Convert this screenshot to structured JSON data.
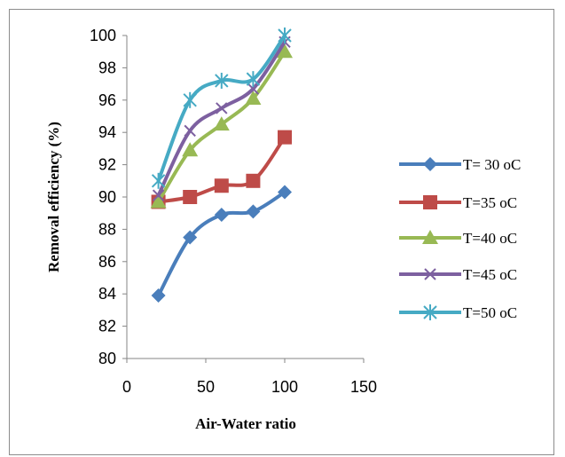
{
  "chart_data": {
    "type": "line",
    "title": "",
    "xlabel": "Air-Water ratio",
    "ylabel": "Removal efficiency (%)",
    "xlim": [
      0,
      150
    ],
    "ylim": [
      80,
      100
    ],
    "x_ticks": [
      "0",
      "50",
      "100",
      "150"
    ],
    "y_ticks": [
      "80",
      "82",
      "84",
      "86",
      "88",
      "90",
      "92",
      "94",
      "96",
      "98",
      "100"
    ],
    "grid": false,
    "legend_position": "right",
    "smooth": true,
    "x": [
      20,
      40,
      60,
      80,
      100
    ],
    "series": [
      {
        "name": "T= 30 oC",
        "color": "#4a7ebb",
        "marker": "diamond",
        "values": [
          83.9,
          87.5,
          88.9,
          89.1,
          90.3
        ]
      },
      {
        "name": "T=35 oC",
        "color": "#be4b48",
        "marker": "square",
        "values": [
          89.7,
          90.0,
          90.7,
          91.0,
          93.7
        ]
      },
      {
        "name": "T=40 oC",
        "color": "#98b954",
        "marker": "triangle",
        "values": [
          89.7,
          92.9,
          94.5,
          96.1,
          99.0
        ]
      },
      {
        "name": "T=45 oC",
        "color": "#7d60a0",
        "marker": "x",
        "values": [
          90.1,
          94.1,
          95.5,
          96.7,
          99.6
        ]
      },
      {
        "name": "T=50 oC",
        "color": "#46aac4",
        "marker": "star",
        "values": [
          91.0,
          96.0,
          97.2,
          97.3,
          100.0
        ]
      }
    ]
  }
}
